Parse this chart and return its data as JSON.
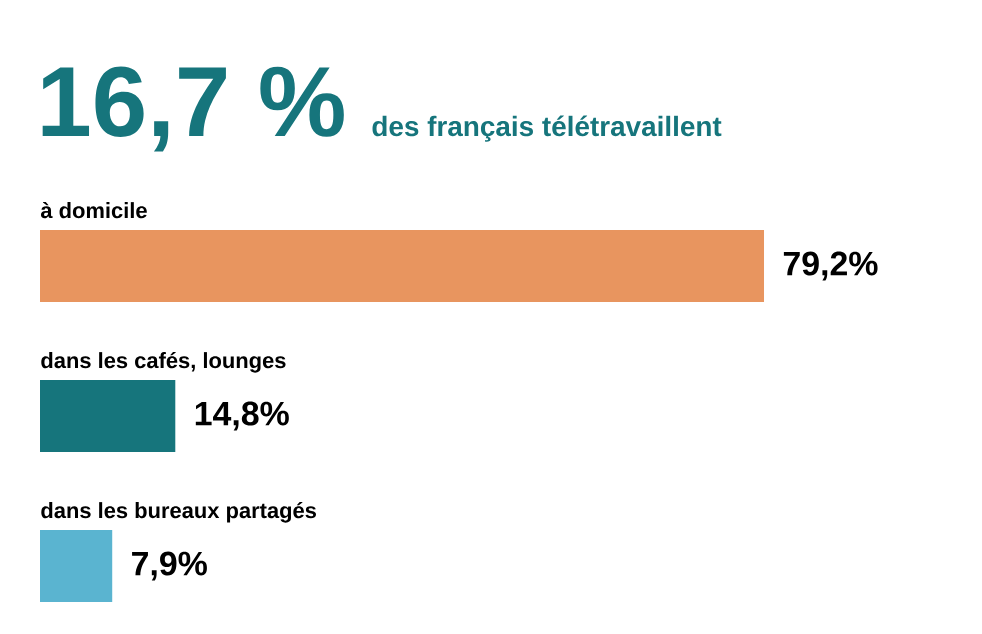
{
  "chart_data": {
    "type": "bar",
    "orientation": "horizontal",
    "title": "16,7 %",
    "subtitle": "des français télétravaillent",
    "categories": [
      "à domicile",
      "dans les cafés, lounges",
      "dans les bureaux partagés"
    ],
    "values": [
      79.2,
      14.8,
      7.9
    ],
    "value_labels": [
      "79,2%",
      "14,8%",
      "7,9%"
    ],
    "colors": [
      "#e8955f",
      "#16757c",
      "#5ab4d0"
    ]
  }
}
